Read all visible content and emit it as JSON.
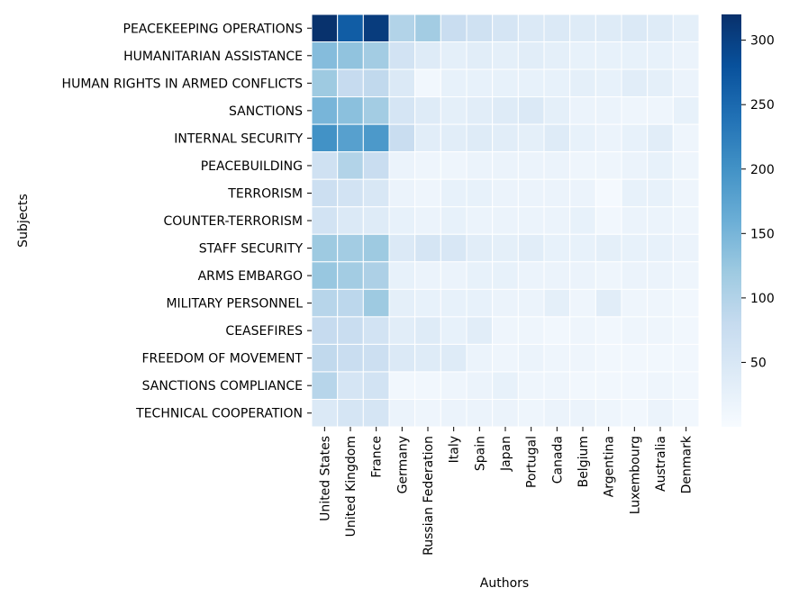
{
  "chart_data": {
    "type": "heatmap",
    "title": "",
    "xlabel": "Authors",
    "ylabel": "Subjects",
    "x_categories": [
      "United States",
      "United Kingdom",
      "France",
      "Germany",
      "Russian Federation",
      "Italy",
      "Spain",
      "Japan",
      "Portugal",
      "Canada",
      "Belgium",
      "Argentina",
      "Luxembourg",
      "Australia",
      "Denmark"
    ],
    "y_categories": [
      "PEACEKEEPING OPERATIONS",
      "HUMANITARIAN ASSISTANCE",
      "HUMAN RIGHTS IN ARMED CONFLICTS",
      "SANCTIONS",
      "INTERNAL SECURITY",
      "PEACEBUILDING",
      "TERRORISM",
      "COUNTER-TERRORISM",
      "STAFF SECURITY",
      "ARMS EMBARGO",
      "MILITARY PERSONNEL",
      "CEASEFIRES",
      "FREEDOM OF MOVEMENT",
      "SANCTIONS COMPLIANCE",
      "TECHNICAL COOPERATION"
    ],
    "values": [
      [
        318,
        265,
        305,
        100,
        115,
        75,
        65,
        55,
        45,
        45,
        40,
        40,
        45,
        40,
        30
      ],
      [
        140,
        130,
        115,
        60,
        40,
        30,
        35,
        30,
        35,
        30,
        25,
        25,
        25,
        25,
        20
      ],
      [
        120,
        80,
        85,
        45,
        10,
        25,
        25,
        25,
        25,
        25,
        30,
        25,
        35,
        30,
        20
      ],
      [
        150,
        135,
        115,
        55,
        40,
        30,
        35,
        40,
        45,
        30,
        20,
        20,
        15,
        15,
        25
      ],
      [
        200,
        180,
        190,
        75,
        35,
        35,
        40,
        35,
        30,
        40,
        25,
        20,
        25,
        35,
        15
      ],
      [
        65,
        100,
        75,
        20,
        15,
        15,
        20,
        20,
        20,
        20,
        15,
        15,
        20,
        25,
        15
      ],
      [
        70,
        60,
        50,
        20,
        15,
        25,
        25,
        20,
        20,
        20,
        20,
        5,
        25,
        25,
        15
      ],
      [
        60,
        45,
        40,
        25,
        20,
        25,
        20,
        20,
        20,
        20,
        25,
        10,
        20,
        20,
        15
      ],
      [
        120,
        115,
        120,
        45,
        55,
        50,
        35,
        30,
        35,
        25,
        25,
        30,
        25,
        25,
        20
      ],
      [
        125,
        115,
        105,
        25,
        20,
        20,
        25,
        25,
        20,
        20,
        20,
        15,
        20,
        20,
        15
      ],
      [
        95,
        90,
        120,
        30,
        25,
        25,
        25,
        20,
        20,
        30,
        15,
        35,
        15,
        15,
        10
      ],
      [
        80,
        75,
        60,
        35,
        40,
        25,
        35,
        15,
        15,
        10,
        15,
        10,
        15,
        15,
        10
      ],
      [
        85,
        75,
        70,
        45,
        40,
        40,
        20,
        15,
        20,
        15,
        15,
        10,
        10,
        10,
        10
      ],
      [
        95,
        55,
        60,
        10,
        10,
        15,
        20,
        25,
        15,
        15,
        10,
        10,
        10,
        15,
        10
      ],
      [
        45,
        55,
        55,
        20,
        15,
        20,
        20,
        20,
        15,
        20,
        20,
        15,
        10,
        20,
        10
      ]
    ],
    "colorscale": "Blues",
    "vmin": 0,
    "vmax": 320,
    "colorbar_ticks": [
      50,
      100,
      150,
      200,
      250,
      300
    ],
    "grid": false,
    "legend": "colorbar-right"
  }
}
